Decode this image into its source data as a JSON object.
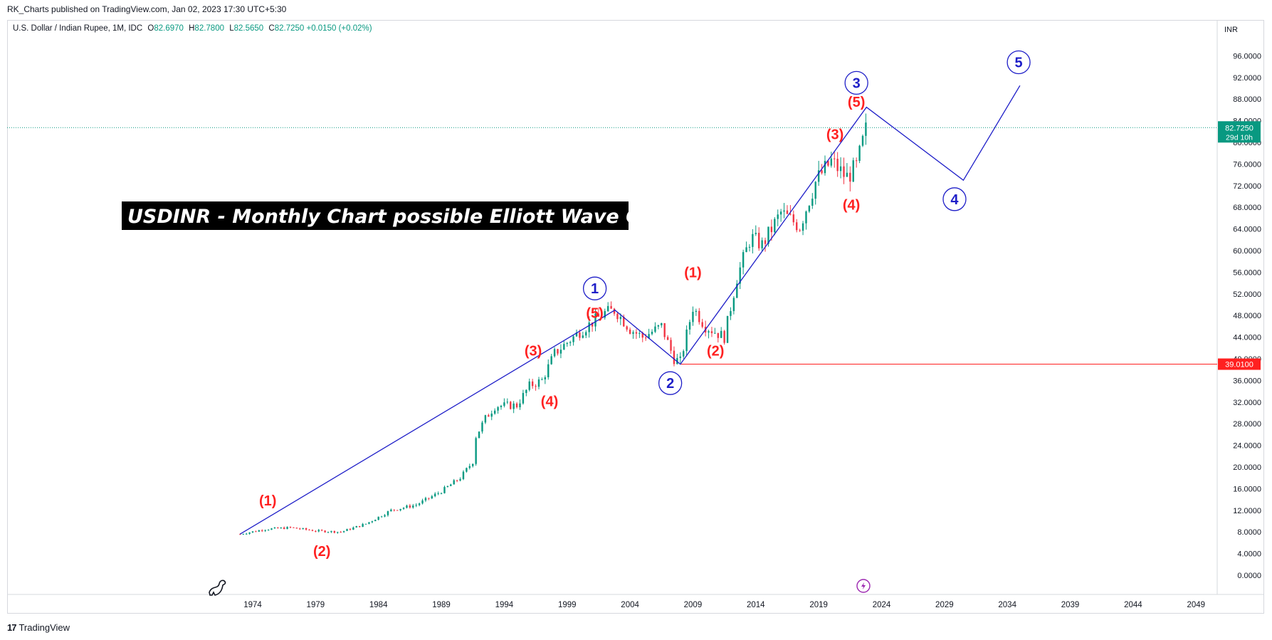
{
  "publisher": "RK_Charts published on TradingView.com, Jan 02, 2023 17:30 UTC+5:30",
  "symbol": {
    "name": "U.S. Dollar / Indian Rupee, 1M, IDC",
    "open_label": "O",
    "open": "82.6970",
    "high_label": "H",
    "high": "82.7800",
    "low_label": "L",
    "low": "82.5650",
    "close_label": "C",
    "close": "82.7250",
    "change": "+0.0150 (+0.02%)"
  },
  "footer": {
    "logo": "17",
    "brand": "TradingView"
  },
  "colors": {
    "up": "#089981",
    "down": "#f23645",
    "wave_line": "#1e1ec8",
    "support": "#ff2020",
    "annotation_bg": "#000000"
  },
  "chart_data": {
    "type": "line",
    "title": "USDINR - Monthly Chart possible Elliott Wave Counts",
    "currency": "INR",
    "y_ticks": [
      "96.0000",
      "92.0000",
      "88.0000",
      "84.0000",
      "80.0000",
      "76.0000",
      "72.0000",
      "68.0000",
      "64.0000",
      "60.0000",
      "56.0000",
      "52.0000",
      "48.0000",
      "44.0000",
      "40.0000",
      "36.0000",
      "32.0000",
      "28.0000",
      "24.0000",
      "20.0000",
      "16.0000",
      "12.0000",
      "8.0000",
      "4.0000",
      "0.0000"
    ],
    "x_ticks": [
      "1974",
      "1979",
      "1984",
      "1989",
      "1994",
      "1999",
      "2004",
      "2009",
      "2014",
      "2019",
      "2024",
      "2029",
      "2034",
      "2039",
      "2044",
      "2049"
    ],
    "ylim": [
      0,
      100
    ],
    "current_price": {
      "value": "82.7250",
      "countdown": "29d 10h"
    },
    "support_level": {
      "value": "39.0100",
      "price": 39.01,
      "from_year": 2008.0
    },
    "price_path": [
      [
        1973.0,
        7.6
      ],
      [
        1975.0,
        8.5
      ],
      [
        1977.0,
        8.8
      ],
      [
        1979.0,
        8.2
      ],
      [
        1981.0,
        8.0
      ],
      [
        1983.0,
        9.5
      ],
      [
        1985.0,
        12.0
      ],
      [
        1987.0,
        13.0
      ],
      [
        1989.0,
        15.5
      ],
      [
        1990.5,
        18.0
      ],
      [
        1991.5,
        21.0
      ],
      [
        1991.6,
        25.0
      ],
      [
        1992.5,
        29.0
      ],
      [
        1993.3,
        31.3
      ],
      [
        1995.0,
        31.4
      ],
      [
        1996.0,
        35.0
      ],
      [
        1997.0,
        36.0
      ],
      [
        1998.0,
        41.0
      ],
      [
        2000.0,
        45.0
      ],
      [
        2002.0,
        48.5
      ],
      [
        2002.8,
        49.0
      ],
      [
        2004.0,
        45.5
      ],
      [
        2005.0,
        44.0
      ],
      [
        2006.5,
        46.0
      ],
      [
        2007.5,
        40.0
      ],
      [
        2008.0,
        39.5
      ],
      [
        2009.0,
        49.5
      ],
      [
        2010.0,
        46.0
      ],
      [
        2011.5,
        44.0
      ],
      [
        2012.5,
        55.0
      ],
      [
        2013.6,
        62.5
      ],
      [
        2014.5,
        61.0
      ],
      [
        2016.0,
        67.0
      ],
      [
        2017.5,
        64.5
      ],
      [
        2018.8,
        73.0
      ],
      [
        2020.0,
        76.5
      ],
      [
        2021.2,
        73.5
      ],
      [
        2022.0,
        75.5
      ],
      [
        2022.8,
        82.7
      ]
    ],
    "wave_lines": [
      {
        "name": "primary-waves",
        "points": [
          [
            1973.0,
            7.6
          ],
          [
            2002.8,
            49.0
          ],
          [
            2008.0,
            39.0
          ],
          [
            2022.8,
            86.5
          ],
          [
            2030.5,
            73.0
          ],
          [
            2035.0,
            90.5
          ]
        ]
      }
    ],
    "primary_labels": [
      {
        "text": "1",
        "x": 2001.2,
        "y": 53.0
      },
      {
        "text": "2",
        "x": 2007.2,
        "y": 35.5
      },
      {
        "text": "3",
        "x": 2022.0,
        "y": 91.0
      },
      {
        "text": "4",
        "x": 2029.8,
        "y": 69.5
      },
      {
        "text": "5",
        "x": 2034.9,
        "y": 94.8
      }
    ],
    "minor_labels": [
      {
        "text": "(1)",
        "x": 1975.2,
        "y": 13.8
      },
      {
        "text": "(2)",
        "x": 1979.5,
        "y": 4.5
      },
      {
        "text": "(3)",
        "x": 1996.3,
        "y": 41.5
      },
      {
        "text": "(4)",
        "x": 1997.6,
        "y": 32.2
      },
      {
        "text": "(5)",
        "x": 2001.2,
        "y": 48.5
      },
      {
        "text": "(1)",
        "x": 2009.0,
        "y": 56.0
      },
      {
        "text": "(2)",
        "x": 2010.8,
        "y": 41.5
      },
      {
        "text": "(3)",
        "x": 2020.3,
        "y": 81.5
      },
      {
        "text": "(4)",
        "x": 2021.6,
        "y": 68.5
      },
      {
        "text": "(5)",
        "x": 2022.0,
        "y": 87.5
      }
    ]
  }
}
